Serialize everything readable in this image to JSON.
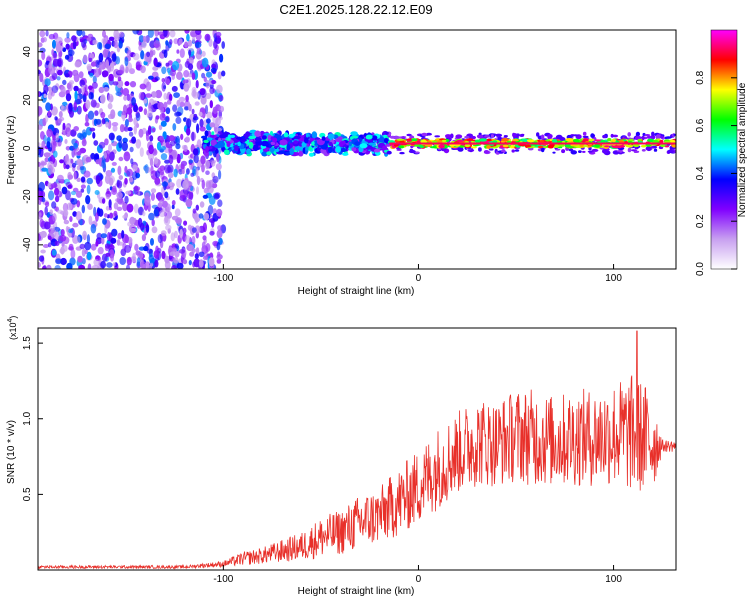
{
  "title": "C2E1.2025.128.22.12.E09",
  "chart_data": [
    {
      "type": "heatmap",
      "xlabel": "Height of straight line (km)",
      "ylabel": "Frequency (Hz)",
      "xlim": [
        -195,
        132
      ],
      "ylim": [
        -50,
        49
      ],
      "xticks": [
        -100,
        0,
        100
      ],
      "yticks": [
        -40,
        -20,
        0,
        20,
        40
      ],
      "colorbar": {
        "label": "Normalized spectral amplitude",
        "range": [
          0,
          1
        ],
        "ticks": [
          "0.0",
          "0.2",
          "0.4",
          "0.6",
          "0.8"
        ],
        "colors": [
          "#ffffff",
          "#c8a0f0",
          "#8000ff",
          "#0000ff",
          "#00ffff",
          "#00ff00",
          "#ffff00",
          "#ff0000",
          "#ff00ff"
        ]
      },
      "regions": [
        {
          "desc": "scattered noise",
          "x": [
            -195,
            -100
          ],
          "y": [
            -50,
            49
          ],
          "amplitude": 0.1
        },
        {
          "desc": "signal band",
          "x": [
            -110,
            -15
          ],
          "freq_center": 2,
          "freq_halfwidth": 5,
          "amplitude": 0.35
        },
        {
          "desc": "strong line",
          "x": [
            -15,
            132
          ],
          "freq_center": 2,
          "freq_halfwidth": 2,
          "amplitude": 0.9
        }
      ]
    },
    {
      "type": "line",
      "xlabel": "Height of straight line (km)",
      "ylabel": "SNR (10 * v/v)",
      "scale_label": "(x10",
      "scale_exp": "4",
      "xlim": [
        -195,
        132
      ],
      "ylim": [
        0,
        1.6
      ],
      "xticks": [
        -100,
        0,
        100
      ],
      "yticks": [
        "0.5",
        "1.0",
        "1.5"
      ],
      "color": "#e8302a",
      "envelope": {
        "x": [
          -195,
          -120,
          -100,
          -90,
          -80,
          -70,
          -60,
          -50,
          -40,
          -30,
          -20,
          -10,
          0,
          10,
          20,
          30,
          40,
          50,
          60,
          70,
          80,
          90,
          100,
          110,
          120,
          125,
          132
        ],
        "low": [
          0.01,
          0.01,
          0.02,
          0.03,
          0.04,
          0.05,
          0.06,
          0.08,
          0.1,
          0.13,
          0.17,
          0.22,
          0.3,
          0.4,
          0.5,
          0.55,
          0.55,
          0.58,
          0.55,
          0.55,
          0.55,
          0.55,
          0.55,
          0.5,
          0.5,
          0.78,
          0.78
        ],
        "high": [
          0.03,
          0.03,
          0.06,
          0.12,
          0.15,
          0.2,
          0.25,
          0.35,
          0.4,
          0.5,
          0.55,
          0.68,
          0.8,
          0.95,
          1.05,
          1.15,
          1.12,
          1.2,
          1.2,
          1.15,
          1.2,
          1.2,
          1.25,
          1.3,
          1.2,
          0.86,
          0.86
        ]
      },
      "peak": {
        "x": 112,
        "y": 1.58
      }
    }
  ]
}
